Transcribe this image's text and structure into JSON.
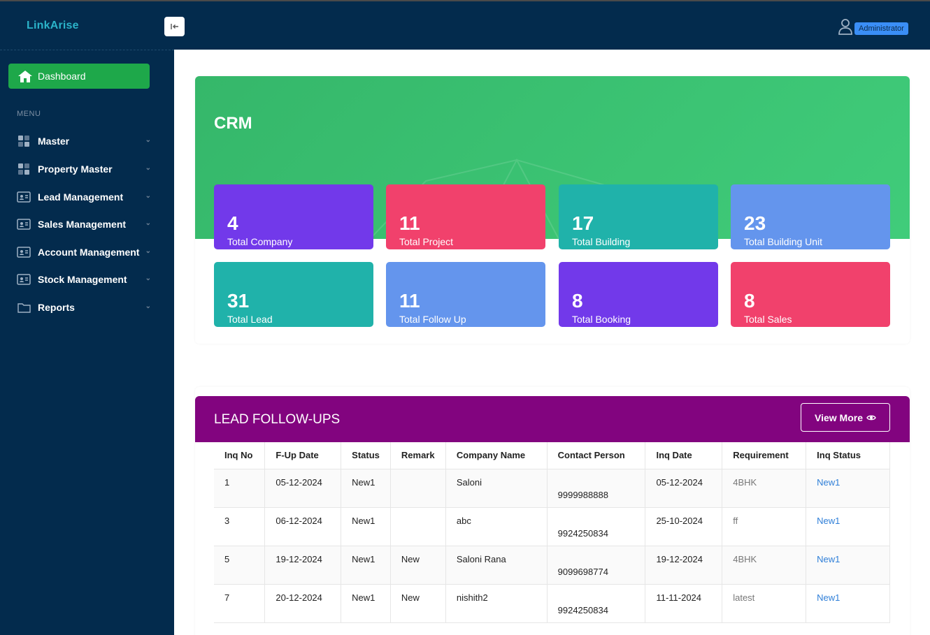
{
  "app": {
    "brand": "LinkArise"
  },
  "header": {
    "user_role": "Administrator"
  },
  "sidebar": {
    "dashboard_label": "Dashboard",
    "menu_label": "MENU",
    "items": [
      {
        "label": "Master",
        "icon": "grid-icon"
      },
      {
        "label": "Property Master",
        "icon": "grid-icon"
      },
      {
        "label": "Lead Management",
        "icon": "id-card-icon"
      },
      {
        "label": "Sales Management",
        "icon": "id-card-icon"
      },
      {
        "label": "Account Management",
        "icon": "id-card-icon"
      },
      {
        "label": "Stock Management",
        "icon": "id-card-icon"
      },
      {
        "label": "Reports",
        "icon": "folder-icon"
      }
    ]
  },
  "crm": {
    "title": "CRM",
    "stats": [
      {
        "value": "4",
        "label": "Total Company",
        "color": "#7239ea"
      },
      {
        "value": "11",
        "label": "Total Project",
        "color": "#f1416c"
      },
      {
        "value": "17",
        "label": "Total Building",
        "color": "#20b2aa"
      },
      {
        "value": "23",
        "label": "Total Building Unit",
        "color": "#6495ed"
      },
      {
        "value": "31",
        "label": "Total Lead",
        "color": "#20b2aa"
      },
      {
        "value": "11",
        "label": "Total Follow Up",
        "color": "#6495ed"
      },
      {
        "value": "8",
        "label": "Total Booking",
        "color": "#7239ea"
      },
      {
        "value": "8",
        "label": "Total Sales",
        "color": "#f1416c"
      }
    ]
  },
  "lead_followups": {
    "title": "LEAD FOLLOW-UPS",
    "view_more_label": "View More",
    "columns": [
      "Inq No",
      "F-Up Date",
      "Status",
      "Remark",
      "Company Name",
      "Contact Person",
      "Inq Date",
      "Requirement",
      "Inq Status"
    ],
    "rows": [
      {
        "inq_no": "1",
        "fup_date": "05-12-2024",
        "status": "New1",
        "remark": "",
        "company": "Saloni",
        "contact": "9999988888",
        "inq_date": "05-12-2024",
        "requirement": "4BHK",
        "inq_status": "New1"
      },
      {
        "inq_no": "3",
        "fup_date": "06-12-2024",
        "status": "New1",
        "remark": "",
        "company": "abc",
        "contact": "9924250834",
        "inq_date": "25-10-2024",
        "requirement": "ff",
        "inq_status": "New1"
      },
      {
        "inq_no": "5",
        "fup_date": "19-12-2024",
        "status": "New1",
        "remark": "New",
        "company": "Saloni Rana",
        "contact": "9099698774",
        "inq_date": "19-12-2024",
        "requirement": "4BHK",
        "inq_status": "New1"
      },
      {
        "inq_no": "7",
        "fup_date": "20-12-2024",
        "status": "New1",
        "remark": "New",
        "company": "nishith2",
        "contact": "9924250834",
        "inq_date": "11-11-2024",
        "requirement": "latest",
        "inq_status": "New1"
      }
    ]
  }
}
